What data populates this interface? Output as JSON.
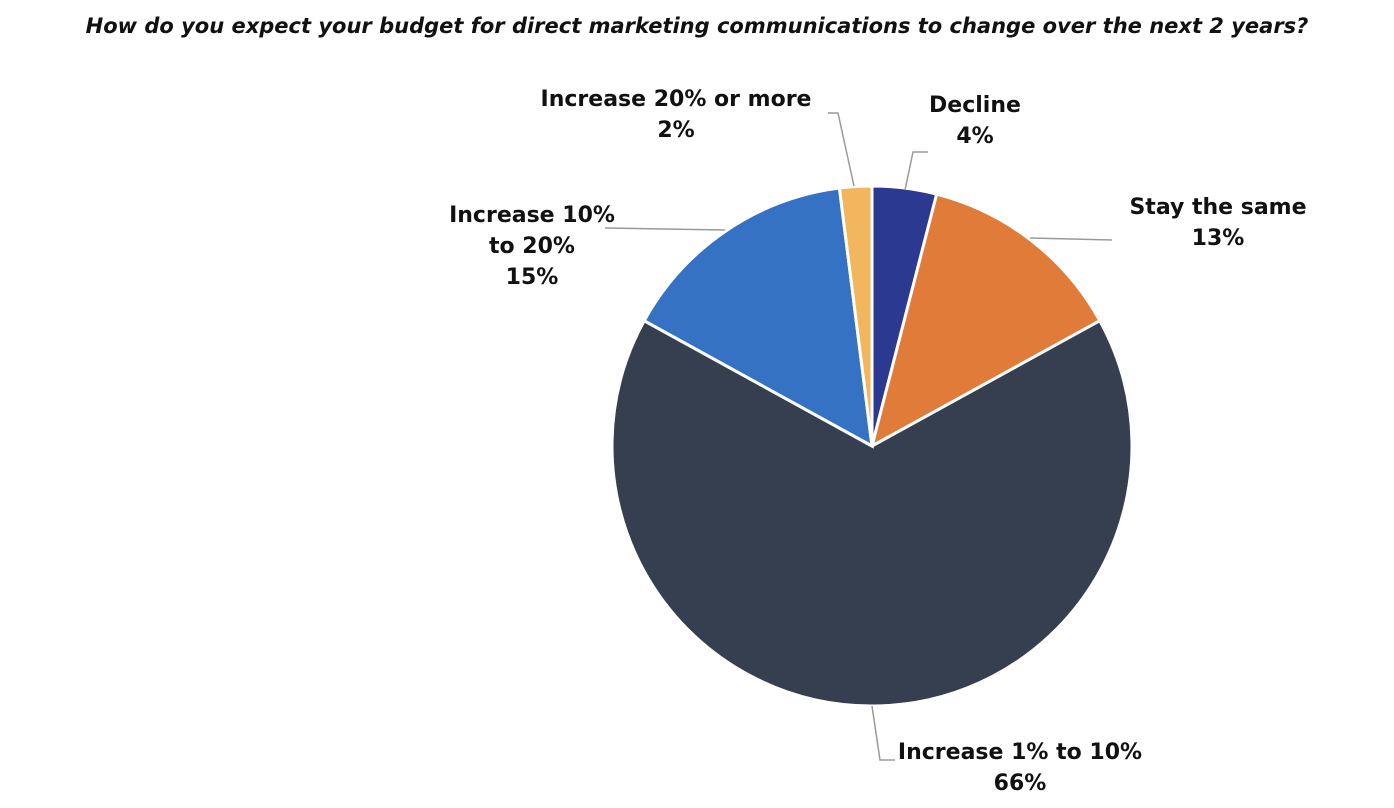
{
  "chart_data": {
    "type": "pie",
    "title": "How do you expect your budget for direct marketing communications to change over the next 2 years?",
    "categories": [
      "Decline",
      "Stay the same",
      "Increase 1% to 10%",
      "Increase 10% to 20%",
      "Increase 20% or more"
    ],
    "values": [
      4,
      13,
      66,
      15,
      2
    ],
    "value_labels": [
      "4%",
      "13%",
      "66%",
      "15%",
      "2%"
    ],
    "colors": [
      "#2b3990",
      "#e07b39",
      "#363f50",
      "#3572c3",
      "#f2b65f"
    ]
  }
}
